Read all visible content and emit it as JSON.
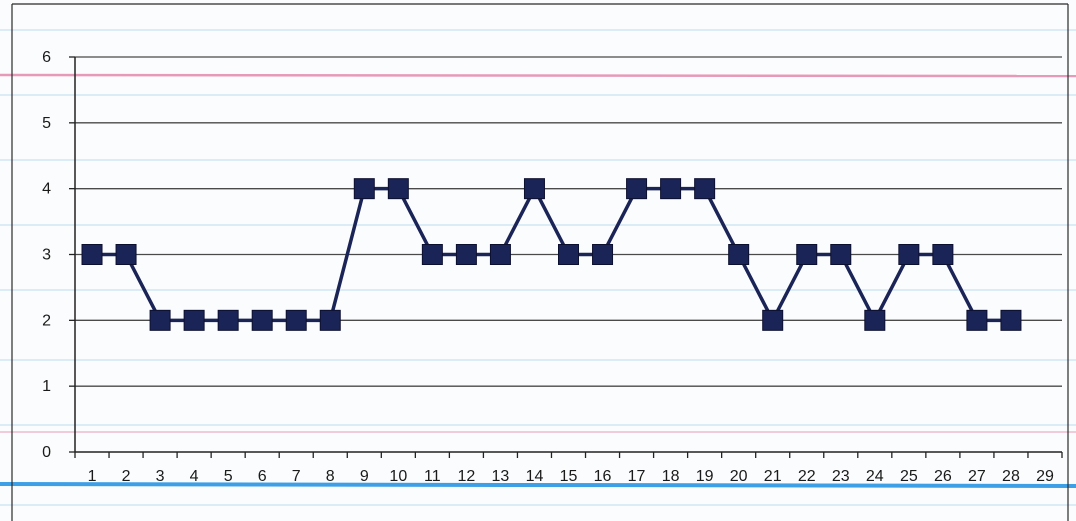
{
  "chart_data": {
    "type": "line",
    "title": "",
    "xlabel": "",
    "ylabel": "",
    "categories": [
      "1",
      "2",
      "3",
      "4",
      "5",
      "6",
      "7",
      "8",
      "9",
      "10",
      "11",
      "12",
      "13",
      "14",
      "15",
      "16",
      "17",
      "18",
      "19",
      "20",
      "21",
      "22",
      "23",
      "24",
      "25",
      "26",
      "27",
      "28",
      "29"
    ],
    "series": [
      {
        "values": [
          3,
          3,
          2,
          2,
          2,
          2,
          2,
          2,
          4,
          4,
          3,
          3,
          3,
          4,
          3,
          3,
          4,
          4,
          4,
          3,
          2,
          3,
          3,
          2,
          3,
          3,
          2,
          2,
          null
        ]
      }
    ],
    "ylim": [
      0,
      6
    ],
    "yticks": [
      0,
      1,
      2,
      3,
      4,
      5,
      6
    ],
    "grid": true,
    "legend": "none",
    "colors": {
      "series": "#1b2457",
      "marker": "#1b2457",
      "gridline": "#4a4a4a",
      "axis": "#222222",
      "paper_ruling_blue": "#c9e3f1",
      "paper_ruling_pink": "#e79ab8",
      "paper_margin_blue": "#3d9fe6"
    }
  }
}
